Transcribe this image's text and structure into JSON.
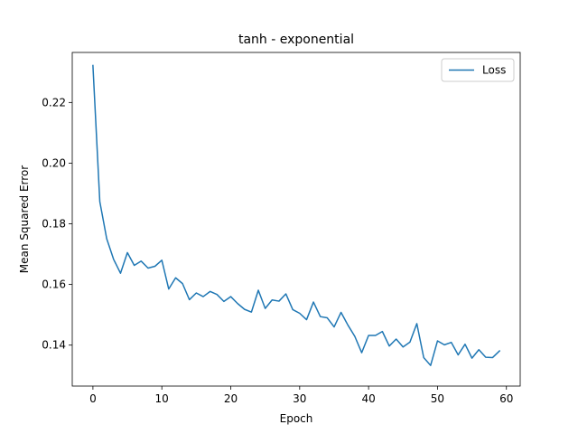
{
  "chart_data": {
    "type": "line",
    "title": "tanh - exponential",
    "xlabel": "Epoch",
    "ylabel": "Mean Squared Error",
    "xlim": [
      -3,
      62
    ],
    "ylim": [
      0.1265,
      0.2365
    ],
    "xticks": [
      0,
      10,
      20,
      30,
      40,
      50,
      60
    ],
    "yticks": [
      0.14,
      0.16,
      0.18,
      0.2,
      0.22
    ],
    "ytick_labels": [
      "0.14",
      "0.16",
      "0.18",
      "0.20",
      "0.22"
    ],
    "legend_placement": "top-right",
    "grid": false,
    "series": [
      {
        "name": "Loss",
        "color": "#1f77b4",
        "x": [
          0,
          1,
          2,
          3,
          4,
          5,
          6,
          7,
          8,
          9,
          10,
          11,
          12,
          13,
          14,
          15,
          16,
          17,
          18,
          19,
          20,
          21,
          22,
          23,
          24,
          25,
          26,
          27,
          28,
          29,
          30,
          31,
          32,
          33,
          34,
          35,
          36,
          37,
          38,
          39,
          40,
          41,
          42,
          43,
          44,
          45,
          46,
          47,
          48,
          49,
          50,
          51,
          52,
          53,
          54,
          55,
          56,
          57,
          58,
          59
        ],
        "values": [
          0.2322,
          0.1873,
          0.1751,
          0.1683,
          0.1637,
          0.1705,
          0.1663,
          0.1677,
          0.1654,
          0.166,
          0.168,
          0.1585,
          0.1622,
          0.1603,
          0.155,
          0.1572,
          0.156,
          0.1577,
          0.1567,
          0.1544,
          0.156,
          0.1537,
          0.1518,
          0.1509,
          0.1581,
          0.1521,
          0.1549,
          0.1545,
          0.1569,
          0.1517,
          0.1505,
          0.1484,
          0.1542,
          0.1494,
          0.149,
          0.146,
          0.1508,
          0.1466,
          0.1429,
          0.1375,
          0.1432,
          0.1432,
          0.1445,
          0.1397,
          0.142,
          0.1394,
          0.141,
          0.1471,
          0.1359,
          0.1333,
          0.1414,
          0.1401,
          0.1409,
          0.1368,
          0.1403,
          0.1357,
          0.1385,
          0.136,
          0.1359,
          0.1381
        ]
      }
    ]
  }
}
